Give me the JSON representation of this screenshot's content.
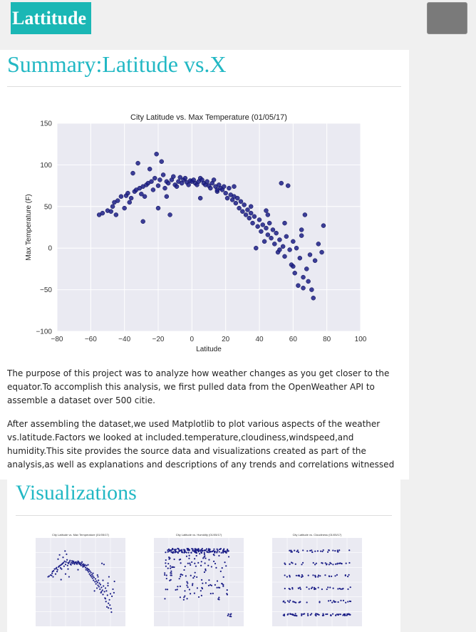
{
  "header": {
    "brand": "Lattitude"
  },
  "summary": {
    "title": "Summary:Latitude vs.X",
    "paragraph1": "The purpose of this project was to analyze how weather changes as you get closer to the equator.To accomplish this analysis, we first pulled data from the OpenWeather API to assemble a dataset over 500 citie.",
    "paragraph2": "After assembling the dataset,we used Matplotlib to plot various aspects of the weather vs.latitude.Factors we looked at included.temperature,cloudiness,windspeed,and humidity.This site provides the source data and visualizations created as part of the analysis,as well as explanations and descriptions of any trends and correlations witnessed"
  },
  "visualizations": {
    "title": "Visualizations",
    "thumbnails": [
      {
        "title": "City Latitude vs. Max Temperature (01/05/17)",
        "kind": "temperature"
      },
      {
        "title": "City Latitude vs. Humidity (01/05/17)",
        "kind": "humidity"
      },
      {
        "title": "City Latitude vs. Cloudiness (01/05/17)",
        "kind": "cloudiness"
      }
    ]
  },
  "chart_data": {
    "type": "scatter",
    "title": "City Latitude vs. Max Temperature (01/05/17)",
    "xlabel": "Latitude",
    "ylabel": "Max Temperature (F)",
    "xlim": [
      -80,
      100
    ],
    "ylim": [
      -100,
      150
    ],
    "xticks": [
      -80,
      -60,
      -40,
      -20,
      0,
      20,
      40,
      60,
      80,
      100
    ],
    "yticks": [
      150,
      100,
      50,
      0,
      -50,
      -100
    ],
    "grid": true,
    "point_color": "#1c1f87",
    "background_color": "#eaeaf2",
    "points": [
      [
        -55,
        40
      ],
      [
        -53,
        42
      ],
      [
        -50,
        45
      ],
      [
        -47,
        50
      ],
      [
        -46,
        55
      ],
      [
        -45,
        40
      ],
      [
        -44,
        57
      ],
      [
        -42,
        62
      ],
      [
        -40,
        48
      ],
      [
        -39,
        63
      ],
      [
        -38,
        66
      ],
      [
        -37,
        55
      ],
      [
        -36,
        60
      ],
      [
        -35,
        90
      ],
      [
        -34,
        68
      ],
      [
        -33,
        70
      ],
      [
        -32,
        102
      ],
      [
        -31,
        72
      ],
      [
        -30,
        65
      ],
      [
        -29,
        74
      ],
      [
        -29,
        32
      ],
      [
        -28,
        62
      ],
      [
        -27,
        76
      ],
      [
        -26,
        78
      ],
      [
        -25,
        95
      ],
      [
        -24,
        80
      ],
      [
        -23,
        70
      ],
      [
        -22,
        84
      ],
      [
        -21,
        113
      ],
      [
        -20,
        75
      ],
      [
        -20,
        48
      ],
      [
        -19,
        82
      ],
      [
        -18,
        104
      ],
      [
        -17,
        88
      ],
      [
        -16,
        72
      ],
      [
        -15,
        80
      ],
      [
        -14,
        78
      ],
      [
        -13,
        40
      ],
      [
        -12,
        82
      ],
      [
        -11,
        86
      ],
      [
        -10,
        76
      ],
      [
        -9,
        74
      ],
      [
        -8,
        80
      ],
      [
        -7,
        85
      ],
      [
        -6,
        78
      ],
      [
        -5,
        82
      ],
      [
        -4,
        84
      ],
      [
        -3,
        79
      ],
      [
        -2,
        76
      ],
      [
        -1,
        81
      ],
      [
        0,
        80
      ],
      [
        1,
        82
      ],
      [
        2,
        78
      ],
      [
        3,
        76
      ],
      [
        4,
        80
      ],
      [
        5,
        84
      ],
      [
        6,
        82
      ],
      [
        7,
        78
      ],
      [
        8,
        76
      ],
      [
        9,
        80
      ],
      [
        10,
        75
      ],
      [
        11,
        72
      ],
      [
        12,
        78
      ],
      [
        13,
        82
      ],
      [
        14,
        74
      ],
      [
        15,
        68
      ],
      [
        16,
        76
      ],
      [
        17,
        72
      ],
      [
        18,
        70
      ],
      [
        19,
        74
      ],
      [
        20,
        66
      ],
      [
        21,
        60
      ],
      [
        22,
        72
      ],
      [
        23,
        64
      ],
      [
        24,
        58
      ],
      [
        25,
        62
      ],
      [
        26,
        54
      ],
      [
        27,
        60
      ],
      [
        28,
        48
      ],
      [
        29,
        56
      ],
      [
        30,
        44
      ],
      [
        31,
        52
      ],
      [
        32,
        40
      ],
      [
        33,
        46
      ],
      [
        34,
        36
      ],
      [
        35,
        42
      ],
      [
        36,
        30
      ],
      [
        37,
        38
      ],
      [
        38,
        0
      ],
      [
        39,
        26
      ],
      [
        40,
        34
      ],
      [
        41,
        20
      ],
      [
        42,
        28
      ],
      [
        43,
        8
      ],
      [
        44,
        24
      ],
      [
        45,
        16
      ],
      [
        46,
        30
      ],
      [
        47,
        12
      ],
      [
        48,
        22
      ],
      [
        49,
        5
      ],
      [
        50,
        18
      ],
      [
        51,
        -5
      ],
      [
        52,
        10
      ],
      [
        53,
        78
      ],
      [
        54,
        2
      ],
      [
        55,
        -10
      ],
      [
        56,
        14
      ],
      [
        57,
        75
      ],
      [
        58,
        -2
      ],
      [
        59,
        -20
      ],
      [
        60,
        8
      ],
      [
        61,
        -30
      ],
      [
        62,
        0
      ],
      [
        63,
        -45
      ],
      [
        64,
        -12
      ],
      [
        65,
        15
      ],
      [
        66,
        -35
      ],
      [
        67,
        40
      ],
      [
        68,
        -25
      ],
      [
        69,
        -40
      ],
      [
        70,
        -8
      ],
      [
        71,
        -50
      ],
      [
        72,
        -60
      ],
      [
        73,
        -15
      ],
      [
        75,
        5
      ],
      [
        77,
        -5
      ],
      [
        78,
        27
      ],
      [
        -48,
        44
      ],
      [
        -15,
        62
      ],
      [
        25,
        74
      ],
      [
        5,
        60
      ],
      [
        15,
        70
      ],
      [
        35,
        50
      ],
      [
        45,
        40
      ],
      [
        55,
        30
      ],
      [
        65,
        22
      ],
      [
        44,
        45
      ],
      [
        52,
        -2
      ],
      [
        60,
        -22
      ],
      [
        66,
        -48
      ]
    ]
  }
}
